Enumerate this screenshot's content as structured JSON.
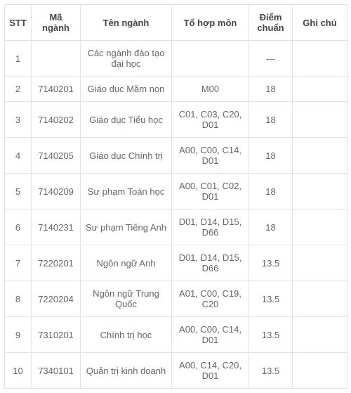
{
  "headers": {
    "stt": "STT",
    "manganh": "Mã ngành",
    "tennganh": "Tên ngành",
    "tohop": "Tổ hợp môn",
    "diem": "Điểm chuẩn",
    "ghichu": "Ghi chú"
  },
  "rows": [
    {
      "stt": "1",
      "manganh": "",
      "tennganh": "Các ngành đào tạo đại học",
      "tohop": "",
      "diem": "---",
      "ghichu": ""
    },
    {
      "stt": "2",
      "manganh": "7140201",
      "tennganh": "Giáo dục Mầm non",
      "tohop": "M00",
      "diem": "18",
      "ghichu": ""
    },
    {
      "stt": "3",
      "manganh": "7140202",
      "tennganh": "Giáo dục Tiểu học",
      "tohop": "C01, C03, C20, D01",
      "diem": "18",
      "ghichu": ""
    },
    {
      "stt": "4",
      "manganh": "7140205",
      "tennganh": "Giáo dục Chính trị",
      "tohop": "A00, C00, C14, D01",
      "diem": "18",
      "ghichu": ""
    },
    {
      "stt": "5",
      "manganh": "7140209",
      "tennganh": "Sư phạm Toán học",
      "tohop": "A00, C01, C02, D01",
      "diem": "18",
      "ghichu": ""
    },
    {
      "stt": "6",
      "manganh": "7140231",
      "tennganh": "Sư phạm Tiếng Anh",
      "tohop": "D01, D14, D15, D66",
      "diem": "18",
      "ghichu": ""
    },
    {
      "stt": "7",
      "manganh": "7220201",
      "tennganh": "Ngôn ngữ Anh",
      "tohop": "D01, D14, D15, D66",
      "diem": "13.5",
      "ghichu": ""
    },
    {
      "stt": "8",
      "manganh": "7220204",
      "tennganh": "Ngôn ngữ Trung Quốc",
      "tohop": "A01, C00, C19, C20",
      "diem": "13.5",
      "ghichu": ""
    },
    {
      "stt": "9",
      "manganh": "7310201",
      "tennganh": "Chính trị học",
      "tohop": "A00, C00, C14, D01",
      "diem": "13.5",
      "ghichu": ""
    },
    {
      "stt": "10",
      "manganh": "7340101",
      "tennganh": "Quản trị kinh doanh",
      "tohop": "A00, C14, C20, D01",
      "diem": "13.5",
      "ghichu": ""
    }
  ]
}
